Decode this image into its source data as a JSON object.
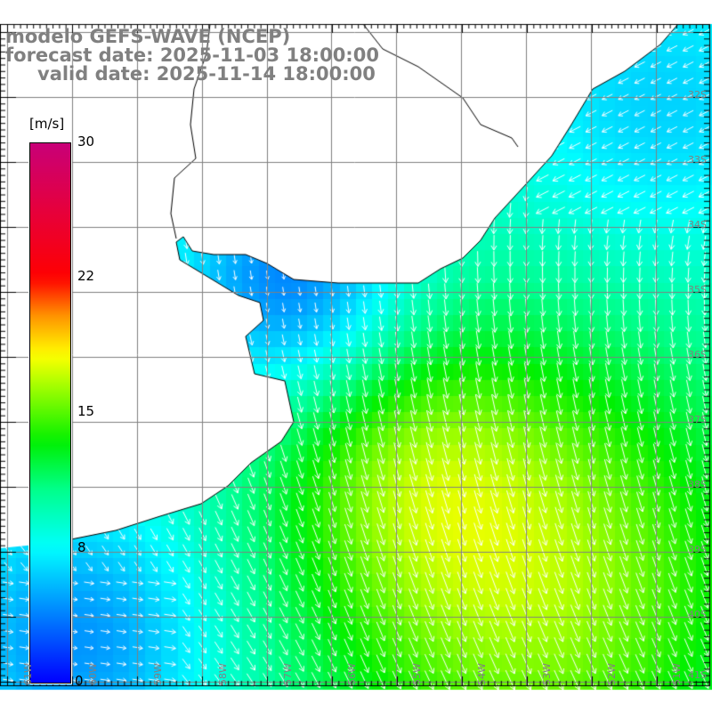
{
  "title": {
    "line1": "modelo GEFS-WAVE (NCEP)",
    "line2": "forecast date: 2025-11-03 18:00:00",
    "line3": "valid date: 2025-11-14 18:00:00"
  },
  "colorbar": {
    "unit": "[m/s]",
    "labels": [
      "30",
      "22",
      "15",
      "8",
      "0"
    ],
    "range": [
      0,
      30
    ]
  },
  "axes": {
    "lat_labels": [
      "32S",
      "33S",
      "34S",
      "35S",
      "36S",
      "37S",
      "38S",
      "39S",
      "40S",
      "41S"
    ],
    "lon_labels": [
      "61W",
      "60W",
      "59W",
      "58W",
      "57W",
      "56W",
      "55W",
      "54W",
      "53W",
      "52W",
      "51W"
    ]
  },
  "colors": {
    "land": "#ffffff",
    "coast": "#000000",
    "grid": "#808080",
    "arrow": "#ffffff"
  }
}
